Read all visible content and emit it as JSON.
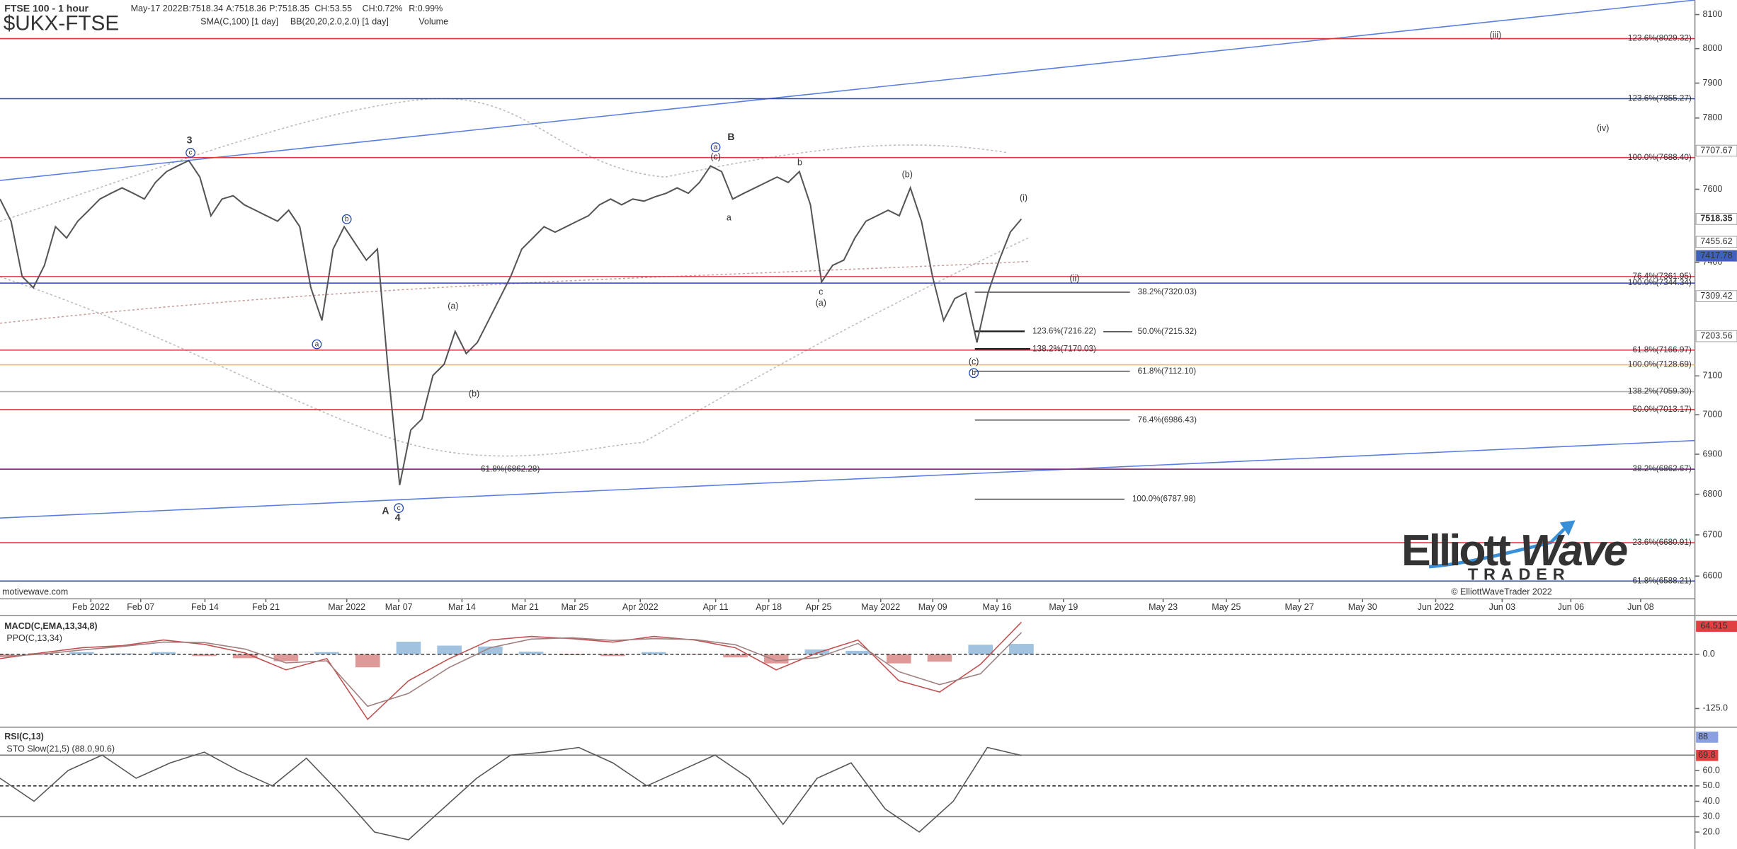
{
  "chart_data": [
    {
      "type": "line",
      "title": "FTSE 100 - 1 hour",
      "symbol": "$UKX-FTSE",
      "quote": [
        "May-17 2022",
        "B:7518.34",
        "A:7518.36",
        "P:7518.35",
        "CH:53.55",
        "CH:0.72%",
        "R:0.99%"
      ],
      "indicators": [
        "SMA(C,100) [1 day]",
        "BB(20,20,2.0,2.0) [1 day]",
        "Volume"
      ],
      "x_labels": [
        "Feb 2022",
        "Feb 07",
        "Feb 14",
        "Feb 21",
        "Mar 2022",
        "Mar 07",
        "Mar 14",
        "Mar 21",
        "Mar 25",
        "Apr 2022",
        "Apr 11",
        "Apr 18",
        "Apr 25",
        "May 2022",
        "May 09",
        "May 16",
        "May 19",
        "May 23",
        "May 25",
        "May 27",
        "May 30",
        "Jun 2022",
        "Jun 03",
        "Jun 06",
        "Jun 08"
      ],
      "color": "#555555",
      "log": true,
      "values": [
        7573,
        7512,
        7362,
        7332,
        7392,
        7497,
        7466,
        7512,
        7542,
        7573,
        7589,
        7604,
        7589,
        7573,
        7619,
        7649,
        7665,
        7680,
        7634,
        7527,
        7573,
        7582,
        7557,
        7542,
        7527,
        7512,
        7542,
        7497,
        7332,
        7245,
        7436,
        7497,
        7451,
        7406,
        7436,
        7101,
        6823,
        6961,
        6989,
        7101,
        7130,
        7216,
        7158,
        7187,
        7245,
        7303,
        7362,
        7436,
        7466,
        7497,
        7482,
        7497,
        7512,
        7527,
        7557,
        7573,
        7557,
        7573,
        7567,
        7579,
        7589,
        7604,
        7589,
        7619,
        7665,
        7649,
        7573,
        7589,
        7604,
        7619,
        7634,
        7619,
        7649,
        7557,
        7347,
        7392,
        7406,
        7466,
        7512,
        7527,
        7542,
        7527,
        7604,
        7512,
        7362,
        7245,
        7303,
        7318,
        7187,
        7318,
        7406,
        7482,
        7518
      ],
      "ylim": [
        6580,
        8143
      ],
      "yticks": [
        8100,
        8000,
        7900,
        7800,
        7600,
        7400,
        7100,
        7000,
        6900,
        6800,
        6700,
        6600
      ],
      "price_boxes": [
        7707.67,
        7518.35,
        7455.62,
        7417.78,
        7309.42,
        7203.56
      ],
      "price_box_colors": [
        "#ffffff",
        "#ffffff",
        "#ffffff",
        "#4060c0",
        "#ffffff",
        "#ffffff"
      ],
      "fib_levels": [
        {
          "value": 8029.32,
          "label": "123.6%(8029.32)",
          "color": "#e0383a"
        },
        {
          "value": 7855.27,
          "label": "123.6%(7855.27)",
          "color": "#3040c0"
        },
        {
          "value": 7688.4,
          "label": "100.0%(7688.40)",
          "color": "#e0383a"
        },
        {
          "value": 7361.95,
          "label": "76.4%(7361.95)",
          "color": "#e0383a"
        },
        {
          "value": 7344.34,
          "label": "100.0%(7344.34)",
          "color": "#3040c0"
        },
        {
          "value": 7166.97,
          "label": "61.8%(7166.97)",
          "color": "#e0383a"
        },
        {
          "value": 7128.69,
          "label": "100.0%(7128.69)",
          "color": "#f0c040"
        },
        {
          "value": 7059.3,
          "label": "138.2%(7059.30)",
          "color": "#b0b0b0"
        },
        {
          "value": 7013.17,
          "label": "50.0%(7013.17)",
          "color": "#e0383a"
        },
        {
          "value": 6862.67,
          "label": "38.2%(6862.67)",
          "color": "#e0383a"
        },
        {
          "value": 6680.91,
          "label": "23.6%(6680.91)",
          "color": "#e0383a"
        },
        {
          "value": 6588.21,
          "label": "61.8%(6588.21)",
          "color": "#3040c0"
        }
      ],
      "projections": [
        {
          "value": 7320.03,
          "label": "38.2%(7320.03)"
        },
        {
          "value": 7216.22,
          "label": "123.6%(7216.22)"
        },
        {
          "value": 7215.32,
          "label": "50.0%(7215.32)"
        },
        {
          "value": 7170.03,
          "label": "138.2%(7170.03)"
        },
        {
          "value": 7112.1,
          "label": "61.8%(7112.10)"
        },
        {
          "value": 6986.43,
          "label": "76.4%(6986.43)"
        },
        {
          "value": 6787.98,
          "label": "100.0%(6787.98)"
        },
        {
          "value": 6862.28,
          "label": "61.8%(6862.28)"
        }
      ],
      "wave_labels": [
        {
          "text": "3",
          "color": "#1a3fb0"
        },
        {
          "text": "c",
          "color": "#1a3fb0",
          "circled": true
        },
        {
          "text": "b",
          "color": "#1a3fb0",
          "circled": true
        },
        {
          "text": "a",
          "color": "#1a3fb0",
          "circled": true
        },
        {
          "text": "(a)",
          "color": "#1a3fb0"
        },
        {
          "text": "(b)",
          "color": "#1a3fb0"
        },
        {
          "text": "A",
          "color": "#d01010"
        },
        {
          "text": "c",
          "color": "#1a3fb0",
          "circled": true
        },
        {
          "text": "4",
          "color": "#1a3fb0"
        },
        {
          "text": "a",
          "color": "#1a3fb0",
          "circled": true
        },
        {
          "text": "(c)",
          "color": "#1a3fb0"
        },
        {
          "text": "B",
          "color": "#d01010"
        },
        {
          "text": "a",
          "color": "#1a3fb0"
        },
        {
          "text": "b",
          "color": "#1a3fb0"
        },
        {
          "text": "c",
          "color": "#1a3fb0"
        },
        {
          "text": "(a)",
          "color": "#1a3fb0"
        },
        {
          "text": "(b)",
          "color": "#1a3fb0"
        },
        {
          "text": "(c)",
          "color": "#1a3fb0"
        },
        {
          "text": "b",
          "color": "#1a3fb0",
          "circled": true
        },
        {
          "text": "(i)",
          "color": "#1a3fb0"
        },
        {
          "text": "(ii)",
          "color": "#1a3fb0"
        },
        {
          "text": "(iii)",
          "color": "#3a1a90"
        },
        {
          "text": "(iv)",
          "color": "#3a1a90"
        }
      ],
      "watermark": "motivewave.com",
      "copyright": "© ElliottWaveTrader 2022",
      "logo": [
        "Elliott",
        "Wave",
        "TRADER"
      ]
    },
    {
      "type": "line",
      "title": "MACD(C,EMA,13,34,8)",
      "subtitle": "PPO(C,13,34)",
      "ylim": [
        -163,
        87
      ],
      "yticks": [
        {
          "value": 0,
          "label": "0.0"
        },
        {
          "value": -125,
          "label": "-125.0"
        }
      ],
      "midline": 0,
      "last_value": 64.515,
      "series": [
        {
          "color": "#c05050",
          "values": [
            -10,
            3,
            15,
            20,
            33,
            23,
            3,
            -36,
            -10,
            -150,
            -61,
            -10,
            33,
            41,
            36,
            28,
            41,
            33,
            15,
            -36,
            3,
            33,
            -61,
            -87,
            -23,
            74
          ]
        },
        {
          "color": "#a08080",
          "values": [
            -5,
            0,
            10,
            18,
            28,
            27,
            12,
            -20,
            -15,
            -120,
            -90,
            -30,
            15,
            35,
            38,
            32,
            36,
            34,
            22,
            -15,
            -8,
            25,
            -40,
            -70,
            -45,
            50
          ]
        }
      ],
      "histogram": [
        -5,
        3,
        5,
        2,
        5,
        -4,
        -9,
        -16,
        5,
        -30,
        29,
        20,
        18,
        6,
        -2,
        -4,
        5,
        -1,
        -7,
        -21,
        11,
        8,
        -21,
        -17,
        22,
        24
      ],
      "histogram_colors": [
        "#8ab4d8",
        "#d88080"
      ]
    },
    {
      "type": "line",
      "title": "RSI(C,13)",
      "subtitle": "STO Slow(21,5) (88.0,90.6)",
      "ylim": [
        9,
        86
      ],
      "yticks": [
        {
          "value": 60,
          "label": "60.0"
        },
        {
          "value": 50,
          "label": "50.0"
        },
        {
          "value": 40,
          "label": "40.0"
        },
        {
          "value": 30,
          "label": "30.0"
        },
        {
          "value": 20,
          "label": "20.0"
        }
      ],
      "levels": [
        70,
        30
      ],
      "midline": 50,
      "boxes": [
        88.0,
        69.8
      ],
      "color": "#555555",
      "values": [
        55,
        40,
        60,
        70,
        55,
        65,
        72,
        60,
        50,
        68,
        45,
        20,
        15,
        35,
        55,
        70,
        72,
        75,
        65,
        50,
        60,
        70,
        55,
        25,
        55,
        65,
        35,
        20,
        40,
        75,
        69.8
      ]
    }
  ]
}
